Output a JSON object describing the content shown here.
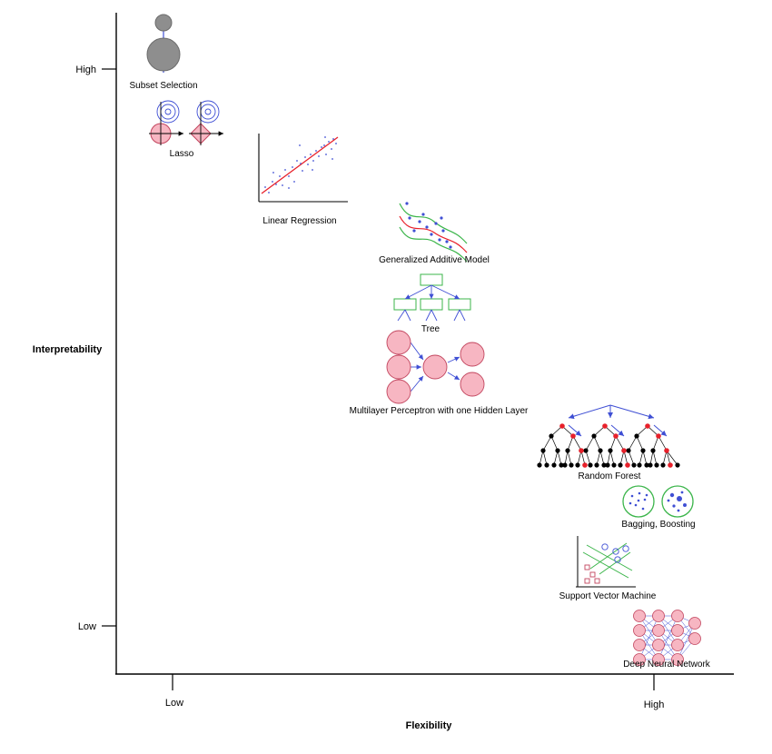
{
  "axes": {
    "y_label": "Interpretability",
    "x_label": "Flexibility",
    "y_high": "High",
    "y_low": "Low",
    "x_low": "Low",
    "x_high": "High"
  },
  "methods": [
    {
      "label": "Subset Selection"
    },
    {
      "label": "Lasso"
    },
    {
      "label": "Linear Regression"
    },
    {
      "label": "Generalized Additive Model"
    },
    {
      "label": "Tree"
    },
    {
      "label": "Multilayer Perceptron with one Hidden Layer"
    },
    {
      "label": "Random Forest"
    },
    {
      "label": "Bagging, Boosting"
    },
    {
      "label": "Support Vector Machine"
    },
    {
      "label": "Deep Neural Network"
    }
  ],
  "colors": {
    "pink": "#f7b6c2",
    "pink_stroke": "#c2455e",
    "blue": "#3f4fd4",
    "green": "#3bb54a",
    "red": "#e8202a",
    "gray": "#8e8e8e"
  }
}
